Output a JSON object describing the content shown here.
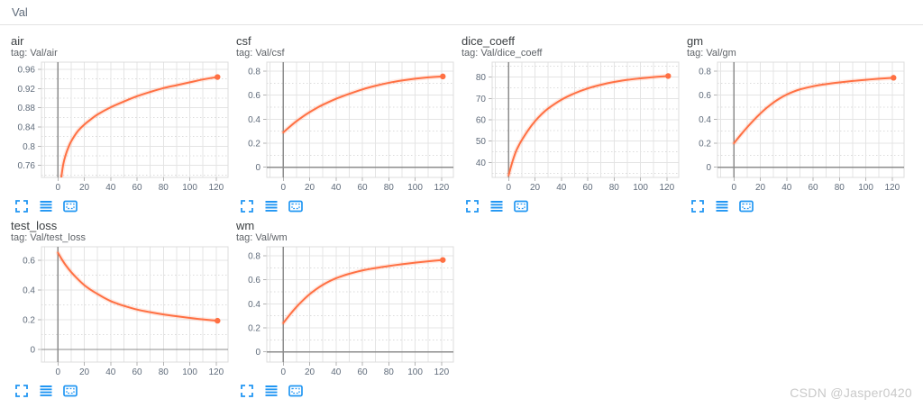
{
  "header": {
    "title": "Val"
  },
  "watermark": {
    "text": "CSDN @Jasper0420"
  },
  "colors": {
    "line": "#ff7043",
    "icon": "#2196f3",
    "grid": "#e4e4e4",
    "grid_minor": "#dcdcdc",
    "axis": "#8c8c8c",
    "border": "#dcdcdc",
    "tick_mark": "#b3b3b3",
    "tick_text": "#5f6b7a",
    "title_text": "#3c4043",
    "tag_text": "#5f6368"
  },
  "card_controls": [
    {
      "name": "expand-icon"
    },
    {
      "name": "data-table-icon"
    },
    {
      "name": "fit-domain-icon"
    }
  ],
  "chart_data": [
    {
      "type": "line",
      "title": "air",
      "tag": "tag: Val/air",
      "xlabel": "",
      "ylabel": "",
      "xlim": [
        -12.5,
        129
      ],
      "ylim": [
        0.735,
        0.975
      ],
      "xticks": [
        0,
        20,
        40,
        60,
        80,
        100,
        120
      ],
      "yticks": [
        0.76,
        0.8,
        0.84,
        0.88,
        0.92,
        0.96
      ],
      "ytick_labels": [
        "0.76",
        "0.8",
        "0.84",
        "0.88",
        "0.92",
        "0.96"
      ],
      "y_minor_step": 0.02,
      "x_grid_step": 10,
      "legend": "off",
      "series": [
        {
          "name": "Val",
          "points": [
            [
              0,
              0.695
            ],
            [
              2,
              0.725
            ],
            [
              4,
              0.762
            ],
            [
              6,
              0.783
            ],
            [
              8,
              0.798
            ],
            [
              10,
              0.81
            ],
            [
              15,
              0.831
            ],
            [
              20,
              0.845
            ],
            [
              25,
              0.856
            ],
            [
              30,
              0.866
            ],
            [
              40,
              0.881
            ],
            [
              50,
              0.893
            ],
            [
              60,
              0.904
            ],
            [
              70,
              0.913
            ],
            [
              80,
              0.921
            ],
            [
              90,
              0.927
            ],
            [
              100,
              0.933
            ],
            [
              110,
              0.939
            ],
            [
              121,
              0.944
            ]
          ]
        }
      ],
      "end_marker": [
        121,
        0.944
      ]
    },
    {
      "type": "line",
      "title": "csf",
      "tag": "tag: Val/csf",
      "xlabel": "",
      "ylabel": "",
      "xlim": [
        -12.5,
        129
      ],
      "ylim": [
        -0.085,
        0.875
      ],
      "xticks": [
        0,
        20,
        40,
        60,
        80,
        100,
        120
      ],
      "yticks": [
        0,
        0.2,
        0.4,
        0.6,
        0.8
      ],
      "ytick_labels": [
        "0",
        "0.2",
        "0.4",
        "0.6",
        "0.8"
      ],
      "y_minor_step": 0.1,
      "x_grid_step": 10,
      "legend": "off",
      "series": [
        {
          "name": "Val",
          "points": [
            [
              0,
              0.29
            ],
            [
              5,
              0.338
            ],
            [
              10,
              0.383
            ],
            [
              15,
              0.423
            ],
            [
              20,
              0.459
            ],
            [
              25,
              0.491
            ],
            [
              30,
              0.52
            ],
            [
              40,
              0.57
            ],
            [
              50,
              0.611
            ],
            [
              60,
              0.648
            ],
            [
              70,
              0.678
            ],
            [
              80,
              0.703
            ],
            [
              90,
              0.722
            ],
            [
              100,
              0.737
            ],
            [
              110,
              0.748
            ],
            [
              121,
              0.756
            ]
          ]
        }
      ],
      "end_marker": [
        121,
        0.756
      ]
    },
    {
      "type": "line",
      "title": "dice_coeff",
      "tag": "tag: Val/dice_coeff",
      "xlabel": "",
      "ylabel": "",
      "xlim": [
        -12.5,
        129
      ],
      "ylim": [
        33,
        87
      ],
      "xticks": [
        0,
        20,
        40,
        60,
        80,
        100,
        120
      ],
      "yticks": [
        40,
        50,
        60,
        70,
        80
      ],
      "ytick_labels": [
        "40",
        "50",
        "60",
        "70",
        "80"
      ],
      "y_minor_step": 5,
      "x_grid_step": 10,
      "legend": "off",
      "series": [
        {
          "name": "Val",
          "points": [
            [
              0,
              34
            ],
            [
              2,
              38.5
            ],
            [
              4,
              42.5
            ],
            [
              6,
              45.8
            ],
            [
              8,
              48.3
            ],
            [
              10,
              50.5
            ],
            [
              15,
              55.3
            ],
            [
              20,
              59.3
            ],
            [
              25,
              62.6
            ],
            [
              30,
              65.3
            ],
            [
              40,
              69.4
            ],
            [
              50,
              72.4
            ],
            [
              60,
              74.7
            ],
            [
              70,
              76.4
            ],
            [
              80,
              77.7
            ],
            [
              90,
              78.7
            ],
            [
              100,
              79.4
            ],
            [
              110,
              80.0
            ],
            [
              121,
              80.5
            ]
          ]
        }
      ],
      "end_marker": [
        121,
        80.5
      ]
    },
    {
      "type": "line",
      "title": "gm",
      "tag": "tag: Val/gm",
      "xlabel": "",
      "ylabel": "",
      "xlim": [
        -12.5,
        129
      ],
      "ylim": [
        -0.085,
        0.875
      ],
      "xticks": [
        0,
        20,
        40,
        60,
        80,
        100,
        120
      ],
      "yticks": [
        0,
        0.2,
        0.4,
        0.6,
        0.8
      ],
      "ytick_labels": [
        "0",
        "0.2",
        "0.4",
        "0.6",
        "0.8"
      ],
      "y_minor_step": 0.1,
      "x_grid_step": 10,
      "legend": "off",
      "series": [
        {
          "name": "Val",
          "points": [
            [
              0,
              0.2
            ],
            [
              5,
              0.268
            ],
            [
              10,
              0.332
            ],
            [
              15,
              0.392
            ],
            [
              20,
              0.447
            ],
            [
              25,
              0.496
            ],
            [
              30,
              0.539
            ],
            [
              35,
              0.575
            ],
            [
              40,
              0.605
            ],
            [
              45,
              0.629
            ],
            [
              50,
              0.648
            ],
            [
              60,
              0.674
            ],
            [
              70,
              0.692
            ],
            [
              80,
              0.706
            ],
            [
              90,
              0.718
            ],
            [
              100,
              0.728
            ],
            [
              110,
              0.737
            ],
            [
              121,
              0.745
            ]
          ]
        }
      ],
      "end_marker": [
        121,
        0.745
      ]
    },
    {
      "type": "line",
      "title": "test_loss",
      "tag": "tag: Val/test_loss",
      "xlabel": "",
      "ylabel": "",
      "xlim": [
        -12.5,
        129
      ],
      "ylim": [
        -0.085,
        0.69
      ],
      "xticks": [
        0,
        20,
        40,
        60,
        80,
        100,
        120
      ],
      "yticks": [
        0,
        0.2,
        0.4,
        0.6
      ],
      "ytick_labels": [
        "0",
        "0.2",
        "0.4",
        "0.6"
      ],
      "y_minor_step": 0.1,
      "x_grid_step": 10,
      "legend": "off",
      "series": [
        {
          "name": "Val",
          "points": [
            [
              0,
              0.65
            ],
            [
              3,
              0.605
            ],
            [
              6,
              0.565
            ],
            [
              10,
              0.52
            ],
            [
              15,
              0.473
            ],
            [
              20,
              0.432
            ],
            [
              25,
              0.4
            ],
            [
              30,
              0.373
            ],
            [
              35,
              0.347
            ],
            [
              40,
              0.325
            ],
            [
              45,
              0.308
            ],
            [
              50,
              0.293
            ],
            [
              60,
              0.268
            ],
            [
              70,
              0.25
            ],
            [
              80,
              0.235
            ],
            [
              90,
              0.223
            ],
            [
              100,
              0.212
            ],
            [
              110,
              0.202
            ],
            [
              121,
              0.193
            ]
          ]
        }
      ],
      "end_marker": [
        121,
        0.193
      ]
    },
    {
      "type": "line",
      "title": "wm",
      "tag": "tag: Val/wm",
      "xlabel": "",
      "ylabel": "",
      "xlim": [
        -12.5,
        129
      ],
      "ylim": [
        -0.085,
        0.875
      ],
      "xticks": [
        0,
        20,
        40,
        60,
        80,
        100,
        120
      ],
      "yticks": [
        0,
        0.2,
        0.4,
        0.6,
        0.8
      ],
      "ytick_labels": [
        "0",
        "0.2",
        "0.4",
        "0.6",
        "0.8"
      ],
      "y_minor_step": 0.1,
      "x_grid_step": 10,
      "legend": "off",
      "series": [
        {
          "name": "Val",
          "points": [
            [
              0,
              0.24
            ],
            [
              5,
              0.31
            ],
            [
              10,
              0.374
            ],
            [
              15,
              0.43
            ],
            [
              20,
              0.48
            ],
            [
              25,
              0.522
            ],
            [
              30,
              0.558
            ],
            [
              35,
              0.588
            ],
            [
              40,
              0.613
            ],
            [
              45,
              0.633
            ],
            [
              50,
              0.65
            ],
            [
              60,
              0.678
            ],
            [
              70,
              0.698
            ],
            [
              80,
              0.715
            ],
            [
              90,
              0.73
            ],
            [
              100,
              0.743
            ],
            [
              110,
              0.754
            ],
            [
              121,
              0.765
            ]
          ]
        }
      ],
      "end_marker": [
        121,
        0.765
      ]
    }
  ]
}
